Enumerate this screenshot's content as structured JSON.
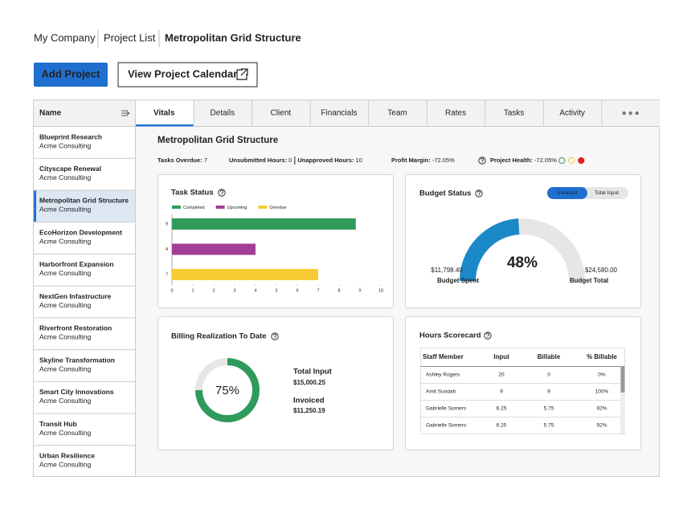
{
  "breadcrumb": [
    "My Company",
    "Project List",
    "Metropolitan Grid Structure"
  ],
  "buttons": {
    "add": "Add Project",
    "calendar": "View Project Calendar"
  },
  "sidebar": {
    "header": "Name",
    "items": [
      {
        "name": "Blueprint Research",
        "company": "Acme Consulting"
      },
      {
        "name": "Cityscape Renewal",
        "company": "Acme Consulting"
      },
      {
        "name": "Metropolitan Grid Structure",
        "company": "Acme Consulting"
      },
      {
        "name": "EcoHorizon Development",
        "company": "Acme Consulting"
      },
      {
        "name": "Harborfront Expansion",
        "company": "Acme Consulting"
      },
      {
        "name": "NextGen Infastructure",
        "company": "Acme Consulting"
      },
      {
        "name": "Riverfront Restoration",
        "company": "Acme Consulting"
      },
      {
        "name": "Skyline Transformation",
        "company": "Acme Consulting"
      },
      {
        "name": "Smart City Innovations",
        "company": "Acme Consulting"
      },
      {
        "name": "Transit Hub",
        "company": "Acme Consulting"
      },
      {
        "name": "Urban Resilience",
        "company": "Acme Consulting"
      }
    ],
    "selected": 2
  },
  "tabs": [
    "Vitals",
    "Details",
    "Client",
    "Financials",
    "Team",
    "Rates",
    "Tasks",
    "Activity"
  ],
  "project_title": "Metropolitan Grid Structure",
  "stats": [
    {
      "label": "Tasks Overdue:",
      "value": 7
    },
    {
      "label": "Unsubmitted Hours:",
      "value": 0
    },
    {
      "label": "Unapproved Hours:",
      "value": 10
    },
    {
      "label": "Profit Margin:",
      "value": "-72.05%"
    },
    {
      "label": "Project Health:",
      "value": "-72.05%"
    }
  ],
  "task_status": {
    "title": "Task Status",
    "xlim": [
      0,
      10
    ],
    "xticks": [
      0,
      1,
      2,
      3,
      4,
      5,
      6,
      7,
      8,
      9,
      10
    ],
    "bars": [
      {
        "name": "Completed",
        "color": "#2e9b5c",
        "value": 8.8,
        "label": "9"
      },
      {
        "name": "Upcoming",
        "color": "#a33f96",
        "value": 4,
        "label": "4"
      },
      {
        "name": "Overdue",
        "color": "#f8cb35",
        "value": 7,
        "label": "7"
      }
    ]
  },
  "budget_status": {
    "title": "Budget Status",
    "toggle": [
      "Invoiced",
      "Total Input"
    ],
    "percent": 48,
    "percent_label": "48%",
    "spent": "$11,798.40",
    "spent_label": "Budget Spent",
    "total": "$24,580.00",
    "total_label": "Budget Total"
  },
  "billing": {
    "title": "Billing Realization To Date",
    "percent": 75,
    "percent_label": "75%",
    "total_input_label": "Total Input",
    "total_input": "$15,000.25",
    "invoiced_label": "Invoiced",
    "invoiced": "$11,250.19"
  },
  "hours": {
    "title": "Hours Scorecard",
    "columns": [
      "Staff Member",
      "Input",
      "Billable",
      "% Billable"
    ],
    "rows": [
      [
        "Ashley Rogers",
        20,
        0,
        "0%"
      ],
      [
        "Amit Sundah",
        9,
        9,
        "100%"
      ],
      [
        "Gabrielle Somers",
        6.25,
        5.75,
        "92%"
      ],
      [
        "Gabrielle Somers",
        6.25,
        5.75,
        "92%"
      ]
    ]
  }
}
